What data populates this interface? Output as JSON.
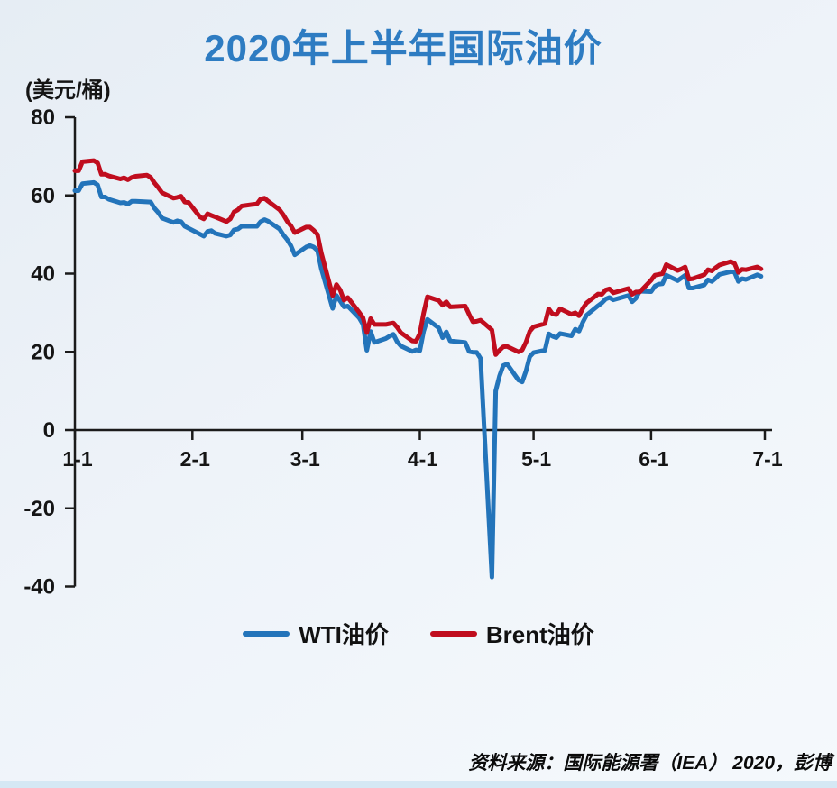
{
  "header": {
    "title": "2020年上半年国际油价"
  },
  "source": {
    "text": "资料来源：国际能源署（IEA） 2020，彭博"
  },
  "chart_data": {
    "type": "line",
    "title": "2020年上半年国际油价",
    "unit_label": "(美元/桶)",
    "ylabel": "美元/桶",
    "ylim": [
      -40,
      80
    ],
    "y_ticks": [
      80,
      60,
      40,
      20,
      0,
      -20,
      -40
    ],
    "x_ticks": [
      "1-1",
      "2-1",
      "3-1",
      "4-1",
      "5-1",
      "6-1",
      "7-1"
    ],
    "grid": false,
    "legend_position": "bottom",
    "axis_color": "#1b1b1b",
    "series": [
      {
        "name": "WTI油价",
        "color": "#2374BA",
        "points": [
          [
            "1-1",
            61.2
          ],
          [
            "1-2",
            61.2
          ],
          [
            "1-3",
            63.0
          ],
          [
            "1-6",
            63.3
          ],
          [
            "1-7",
            62.7
          ],
          [
            "1-8",
            59.6
          ],
          [
            "1-9",
            59.6
          ],
          [
            "1-10",
            59.0
          ],
          [
            "1-13",
            58.1
          ],
          [
            "1-14",
            58.2
          ],
          [
            "1-15",
            57.8
          ],
          [
            "1-16",
            58.5
          ],
          [
            "1-17",
            58.5
          ],
          [
            "1-21",
            58.3
          ],
          [
            "1-22",
            56.7
          ],
          [
            "1-23",
            55.6
          ],
          [
            "1-24",
            54.2
          ],
          [
            "1-27",
            53.1
          ],
          [
            "1-28",
            53.5
          ],
          [
            "1-29",
            53.3
          ],
          [
            "1-30",
            52.1
          ],
          [
            "1-31",
            51.6
          ],
          [
            "2-3",
            50.1
          ],
          [
            "2-4",
            49.6
          ],
          [
            "2-5",
            50.8
          ],
          [
            "2-6",
            51.0
          ],
          [
            "2-7",
            50.3
          ],
          [
            "2-10",
            49.6
          ],
          [
            "2-11",
            49.9
          ],
          [
            "2-12",
            51.2
          ],
          [
            "2-13",
            51.4
          ],
          [
            "2-14",
            52.1
          ],
          [
            "2-18",
            52.1
          ],
          [
            "2-19",
            53.3
          ],
          [
            "2-20",
            53.8
          ],
          [
            "2-21",
            53.4
          ],
          [
            "2-24",
            51.4
          ],
          [
            "2-25",
            49.9
          ],
          [
            "2-26",
            48.7
          ],
          [
            "2-27",
            47.1
          ],
          [
            "2-28",
            44.8
          ],
          [
            "3-2",
            46.8
          ],
          [
            "3-3",
            47.2
          ],
          [
            "3-4",
            46.8
          ],
          [
            "3-5",
            45.9
          ],
          [
            "3-6",
            41.3
          ],
          [
            "3-9",
            31.1
          ],
          [
            "3-10",
            34.4
          ],
          [
            "3-11",
            33.0
          ],
          [
            "3-12",
            31.5
          ],
          [
            "3-13",
            31.7
          ],
          [
            "3-16",
            28.7
          ],
          [
            "3-17",
            27.0
          ],
          [
            "3-18",
            20.4
          ],
          [
            "3-19",
            25.2
          ],
          [
            "3-20",
            22.4
          ],
          [
            "3-23",
            23.4
          ],
          [
            "3-24",
            24.0
          ],
          [
            "3-25",
            24.5
          ],
          [
            "3-26",
            22.6
          ],
          [
            "3-27",
            21.5
          ],
          [
            "3-30",
            20.1
          ],
          [
            "3-31",
            20.5
          ],
          [
            "4-1",
            20.3
          ],
          [
            "4-2",
            25.3
          ],
          [
            "4-3",
            28.3
          ],
          [
            "4-6",
            26.1
          ],
          [
            "4-7",
            23.6
          ],
          [
            "4-8",
            25.1
          ],
          [
            "4-9",
            22.8
          ],
          [
            "4-13",
            22.4
          ],
          [
            "4-14",
            20.1
          ],
          [
            "4-15",
            19.9
          ],
          [
            "4-16",
            19.9
          ],
          [
            "4-17",
            18.3
          ],
          [
            "4-20",
            -37.6
          ],
          [
            "4-21",
            10.0
          ],
          [
            "4-22",
            13.8
          ],
          [
            "4-23",
            16.5
          ],
          [
            "4-24",
            16.9
          ],
          [
            "4-27",
            12.8
          ],
          [
            "4-28",
            12.3
          ],
          [
            "4-29",
            15.1
          ],
          [
            "4-30",
            18.8
          ],
          [
            "5-1",
            19.8
          ],
          [
            "5-4",
            20.4
          ],
          [
            "5-5",
            24.6
          ],
          [
            "5-6",
            24.0
          ],
          [
            "5-7",
            23.6
          ],
          [
            "5-8",
            24.7
          ],
          [
            "5-11",
            24.1
          ],
          [
            "5-12",
            25.8
          ],
          [
            "5-13",
            25.3
          ],
          [
            "5-14",
            27.6
          ],
          [
            "5-15",
            29.4
          ],
          [
            "5-18",
            31.8
          ],
          [
            "5-19",
            32.5
          ],
          [
            "5-20",
            33.5
          ],
          [
            "5-21",
            33.9
          ],
          [
            "5-22",
            33.3
          ],
          [
            "5-26",
            34.4
          ],
          [
            "5-27",
            32.8
          ],
          [
            "5-28",
            33.7
          ],
          [
            "5-29",
            35.5
          ],
          [
            "6-1",
            35.4
          ],
          [
            "6-2",
            36.8
          ],
          [
            "6-3",
            37.3
          ],
          [
            "6-4",
            37.4
          ],
          [
            "6-5",
            39.6
          ],
          [
            "6-8",
            38.2
          ],
          [
            "6-9",
            38.9
          ],
          [
            "6-10",
            39.6
          ],
          [
            "6-11",
            36.3
          ],
          [
            "6-12",
            36.3
          ],
          [
            "6-15",
            37.1
          ],
          [
            "6-16",
            38.4
          ],
          [
            "6-17",
            38.0
          ],
          [
            "6-18",
            38.8
          ],
          [
            "6-19",
            39.8
          ],
          [
            "6-22",
            40.5
          ],
          [
            "6-23",
            40.4
          ],
          [
            "6-24",
            38.0
          ],
          [
            "6-25",
            38.7
          ],
          [
            "6-26",
            38.5
          ],
          [
            "6-29",
            39.7
          ],
          [
            "6-30",
            39.3
          ]
        ]
      },
      {
        "name": "Brent油价",
        "color": "#C00D1E",
        "points": [
          [
            "1-1",
            66.3
          ],
          [
            "1-2",
            66.3
          ],
          [
            "1-3",
            68.6
          ],
          [
            "1-6",
            68.9
          ],
          [
            "1-7",
            68.3
          ],
          [
            "1-8",
            65.4
          ],
          [
            "1-9",
            65.4
          ],
          [
            "1-10",
            65.0
          ],
          [
            "1-13",
            64.2
          ],
          [
            "1-14",
            64.5
          ],
          [
            "1-15",
            64.0
          ],
          [
            "1-16",
            64.6
          ],
          [
            "1-17",
            64.9
          ],
          [
            "1-20",
            65.2
          ],
          [
            "1-21",
            64.6
          ],
          [
            "1-22",
            63.2
          ],
          [
            "1-23",
            62.0
          ],
          [
            "1-24",
            60.7
          ],
          [
            "1-27",
            59.3
          ],
          [
            "1-28",
            59.5
          ],
          [
            "1-29",
            59.8
          ],
          [
            "1-30",
            58.3
          ],
          [
            "1-31",
            58.2
          ],
          [
            "2-3",
            54.5
          ],
          [
            "2-4",
            54.0
          ],
          [
            "2-5",
            55.3
          ],
          [
            "2-6",
            54.9
          ],
          [
            "2-7",
            54.5
          ],
          [
            "2-10",
            53.3
          ],
          [
            "2-11",
            54.0
          ],
          [
            "2-12",
            55.8
          ],
          [
            "2-13",
            56.3
          ],
          [
            "2-14",
            57.3
          ],
          [
            "2-17",
            57.7
          ],
          [
            "2-18",
            57.8
          ],
          [
            "2-19",
            59.1
          ],
          [
            "2-20",
            59.3
          ],
          [
            "2-21",
            58.5
          ],
          [
            "2-24",
            56.3
          ],
          [
            "2-25",
            55.0
          ],
          [
            "2-26",
            53.4
          ],
          [
            "2-27",
            52.2
          ],
          [
            "2-28",
            50.5
          ],
          [
            "3-2",
            51.9
          ],
          [
            "3-3",
            51.9
          ],
          [
            "3-4",
            51.1
          ],
          [
            "3-5",
            50.0
          ],
          [
            "3-6",
            45.3
          ],
          [
            "3-9",
            34.4
          ],
          [
            "3-10",
            37.2
          ],
          [
            "3-11",
            35.8
          ],
          [
            "3-12",
            33.2
          ],
          [
            "3-13",
            33.9
          ],
          [
            "3-16",
            30.1
          ],
          [
            "3-17",
            28.7
          ],
          [
            "3-18",
            24.9
          ],
          [
            "3-19",
            28.5
          ],
          [
            "3-20",
            27.0
          ],
          [
            "3-23",
            27.0
          ],
          [
            "3-24",
            27.2
          ],
          [
            "3-25",
            27.4
          ],
          [
            "3-26",
            26.3
          ],
          [
            "3-27",
            24.9
          ],
          [
            "3-30",
            22.8
          ],
          [
            "3-31",
            22.7
          ],
          [
            "4-1",
            24.7
          ],
          [
            "4-2",
            29.9
          ],
          [
            "4-3",
            34.1
          ],
          [
            "4-6",
            33.1
          ],
          [
            "4-7",
            31.9
          ],
          [
            "4-8",
            32.8
          ],
          [
            "4-9",
            31.5
          ],
          [
            "4-13",
            31.7
          ],
          [
            "4-14",
            29.6
          ],
          [
            "4-15",
            27.7
          ],
          [
            "4-16",
            27.8
          ],
          [
            "4-17",
            28.1
          ],
          [
            "4-20",
            25.6
          ],
          [
            "4-21",
            19.3
          ],
          [
            "4-22",
            20.4
          ],
          [
            "4-23",
            21.3
          ],
          [
            "4-24",
            21.4
          ],
          [
            "4-27",
            20.0
          ],
          [
            "4-28",
            20.5
          ],
          [
            "4-29",
            22.5
          ],
          [
            "4-30",
            25.3
          ],
          [
            "5-1",
            26.4
          ],
          [
            "5-4",
            27.2
          ],
          [
            "5-5",
            31.0
          ],
          [
            "5-6",
            29.7
          ],
          [
            "5-7",
            29.5
          ],
          [
            "5-8",
            31.0
          ],
          [
            "5-11",
            29.6
          ],
          [
            "5-12",
            30.0
          ],
          [
            "5-13",
            29.2
          ],
          [
            "5-14",
            31.1
          ],
          [
            "5-15",
            32.5
          ],
          [
            "5-18",
            34.8
          ],
          [
            "5-19",
            34.7
          ],
          [
            "5-20",
            35.8
          ],
          [
            "5-21",
            36.1
          ],
          [
            "5-22",
            35.1
          ],
          [
            "5-26",
            36.2
          ],
          [
            "5-27",
            34.7
          ],
          [
            "5-28",
            35.3
          ],
          [
            "5-29",
            35.3
          ],
          [
            "6-1",
            38.3
          ],
          [
            "6-2",
            39.6
          ],
          [
            "6-3",
            39.8
          ],
          [
            "6-4",
            40.0
          ],
          [
            "6-5",
            42.3
          ],
          [
            "6-8",
            40.8
          ],
          [
            "6-9",
            41.2
          ],
          [
            "6-10",
            41.7
          ],
          [
            "6-11",
            38.6
          ],
          [
            "6-12",
            38.7
          ],
          [
            "6-15",
            39.7
          ],
          [
            "6-16",
            41.0
          ],
          [
            "6-17",
            40.7
          ],
          [
            "6-18",
            41.5
          ],
          [
            "6-19",
            42.2
          ],
          [
            "6-22",
            43.1
          ],
          [
            "6-23",
            42.6
          ],
          [
            "6-24",
            40.3
          ],
          [
            "6-25",
            41.1
          ],
          [
            "6-26",
            41.0
          ],
          [
            "6-29",
            41.7
          ],
          [
            "6-30",
            41.2
          ]
        ]
      }
    ]
  }
}
